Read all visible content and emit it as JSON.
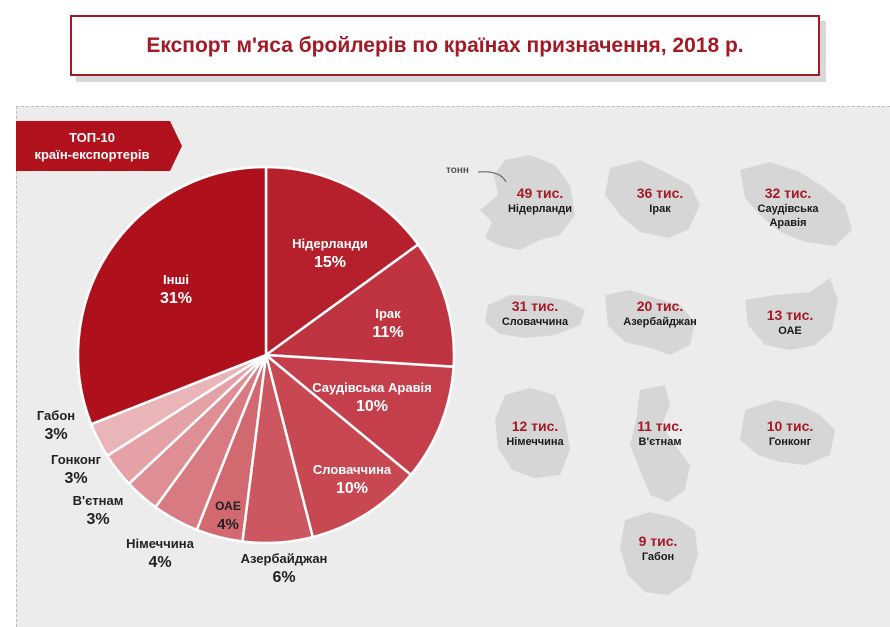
{
  "title": "Експорт м'яса бройлерів по країнах призначення,  2018 р.",
  "ribbon": {
    "line1": "ТОП-10",
    "line2": "країн-експортерів"
  },
  "unit": "тонн",
  "colors": {
    "accent": "#a31a25",
    "panel": "#ececec",
    "silhouette": "#d2d2d2"
  },
  "chart_data": {
    "type": "pie",
    "slices": [
      {
        "label": "Нідерланди",
        "pct": "15%",
        "value": 15,
        "color": "#b5202c"
      },
      {
        "label": "Ірак",
        "pct": "11%",
        "value": 11,
        "color": "#bf3440"
      },
      {
        "label": "Саудівська Аравія",
        "pct": "10%",
        "value": 10,
        "color": "#c43f4b"
      },
      {
        "label": "Словаччина",
        "pct": "10%",
        "value": 10,
        "color": "#c84852"
      },
      {
        "label": "Азербайджан",
        "pct": "6%",
        "value": 6,
        "color": "#cc5760"
      },
      {
        "label": "ОАЕ",
        "pct": "4%",
        "value": 4,
        "color": "#d26870"
      },
      {
        "label": "Німеччина",
        "pct": "4%",
        "value": 4,
        "color": "#d87a82"
      },
      {
        "label": "В'єтнам",
        "pct": "3%",
        "value": 3,
        "color": "#de8e94"
      },
      {
        "label": "Гонконг",
        "pct": "3%",
        "value": 3,
        "color": "#e4a1a6"
      },
      {
        "label": "Габон",
        "pct": "3%",
        "value": 3,
        "color": "#eab5b9"
      },
      {
        "label": "Інші",
        "pct": "31%",
        "value": 31,
        "color": "#ae111c"
      }
    ]
  },
  "countries": [
    {
      "value": "49 тис.",
      "name": "Нідерланди"
    },
    {
      "value": "36 тис.",
      "name": "Ірак"
    },
    {
      "value": "32 тис.",
      "name": "Саудівська",
      "name2": "Аравія"
    },
    {
      "value": "31 тис.",
      "name": "Словаччина"
    },
    {
      "value": "20 тис.",
      "name": "Азербайджан"
    },
    {
      "value": "13 тис.",
      "name": "ОАЕ"
    },
    {
      "value": "12 тис.",
      "name": "Німеччина"
    },
    {
      "value": "11 тис.",
      "name": "В'єтнам"
    },
    {
      "value": "10 тис.",
      "name": "Гонконг"
    },
    {
      "value": "9 тис.",
      "name": "Габон"
    }
  ]
}
